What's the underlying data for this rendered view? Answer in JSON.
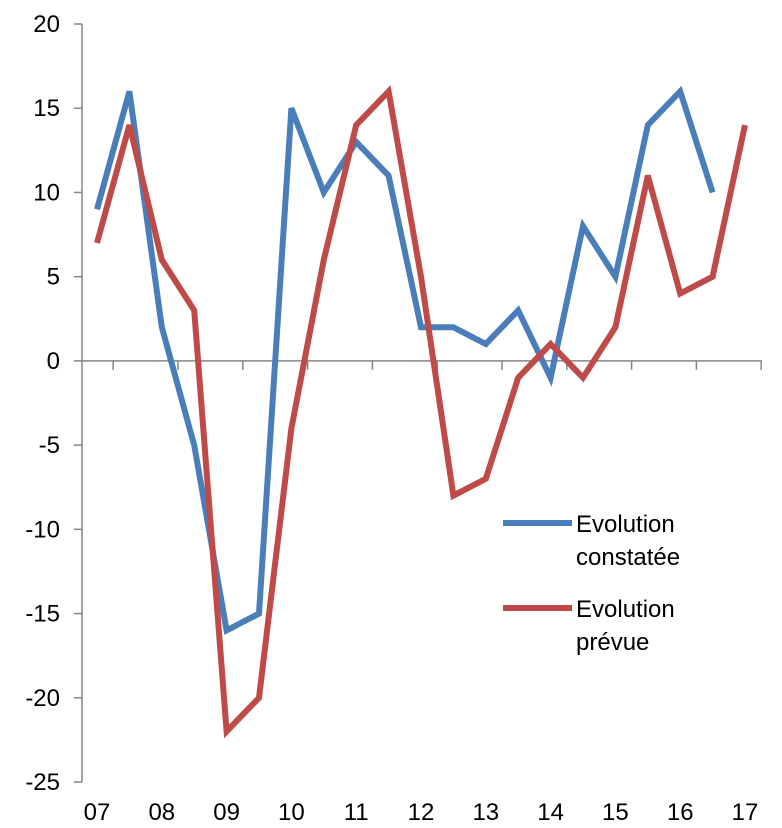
{
  "chart_data": {
    "type": "line",
    "ylim": [
      -25,
      20
    ],
    "y_ticks": [
      "20",
      "15",
      "10",
      "5",
      "0",
      "-5",
      "-10",
      "-15",
      "-20",
      "-25"
    ],
    "x_tick_labels": [
      "07",
      "08",
      "09",
      "10",
      "11",
      "12",
      "13",
      "14",
      "15",
      "16",
      "17"
    ],
    "x_unit": "half-year",
    "series": [
      {
        "name": "Evolution constatée",
        "legend_lines": [
          "Evolution",
          "constatée"
        ],
        "color": "#4a7ebb",
        "values": [
          9,
          16,
          2,
          -5,
          -16,
          -15,
          15,
          10,
          13,
          11,
          2,
          2,
          1,
          3,
          -1,
          8,
          5,
          14,
          16,
          10
        ]
      },
      {
        "name": "Evolution prévue",
        "legend_lines": [
          "Evolution",
          "prévue"
        ],
        "color": "#be4b48",
        "values": [
          7,
          14,
          6,
          3,
          -22,
          -20,
          -4,
          6,
          14,
          16,
          5,
          -8,
          -7,
          -1,
          1,
          -1,
          2,
          11,
          4,
          5,
          14
        ]
      }
    ],
    "legend_position": "right",
    "grid": false
  }
}
